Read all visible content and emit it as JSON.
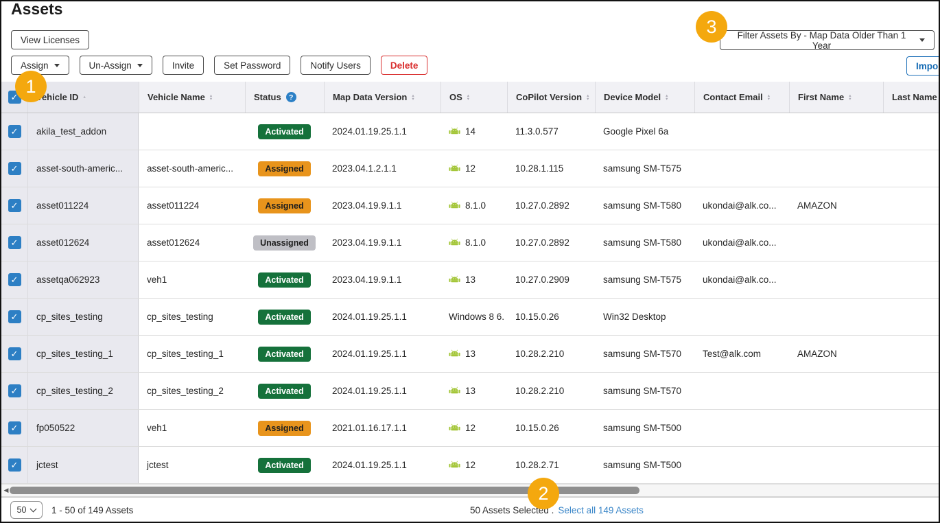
{
  "page": {
    "title": "Assets"
  },
  "toolbar": {
    "view_licenses": "View Licenses",
    "assign": "Assign",
    "un_assign": "Un-Assign",
    "invite": "Invite",
    "set_password": "Set Password",
    "notify_users": "Notify Users",
    "delete": "Delete",
    "filter": "Filter Assets By - Map Data Older Than 1 Year",
    "import": "Import"
  },
  "callouts": {
    "one": "1",
    "two": "2",
    "three": "3"
  },
  "colors": {
    "checkbox_blue": "#2D7FC4",
    "callout_yellow": "#F4A80E",
    "android_green": "#A4C639",
    "delete_red": "#D92F2F",
    "link_blue": "#3A86C8",
    "import_blue": "#176CB5",
    "status": {
      "Activated": "#15713B",
      "Assigned": "#E8941C",
      "Unassigned": "#BFBFC5"
    },
    "status_text": {
      "Activated": "#FFFFFF",
      "Assigned": "#1E1E1E",
      "Unassigned": "#1E1E1E"
    }
  },
  "table": {
    "columns": [
      {
        "key": "vehicle_id",
        "label": "Vehicle ID",
        "sort": "asc"
      },
      {
        "key": "vehicle_name",
        "label": "Vehicle Name",
        "sort": "both"
      },
      {
        "key": "status",
        "label": "Status",
        "help": true
      },
      {
        "key": "map_data_version",
        "label": "Map Data Version",
        "sort": "both"
      },
      {
        "key": "os",
        "label": "OS",
        "sort": "both"
      },
      {
        "key": "copilot_version",
        "label": "CoPilot Version",
        "sort": "both"
      },
      {
        "key": "device_model",
        "label": "Device Model",
        "sort": "both"
      },
      {
        "key": "contact_email",
        "label": "Contact Email",
        "sort": "both"
      },
      {
        "key": "first_name",
        "label": "First Name",
        "sort": "both"
      },
      {
        "key": "last_name",
        "label": "Last Name",
        "sort": "both"
      }
    ],
    "rows": [
      {
        "checked": true,
        "vehicle_id": "akila_test_addon",
        "vehicle_name": "",
        "status": "Activated",
        "map_data_version": "2024.01.19.25.1.1",
        "os_icon": "android",
        "os": "14",
        "copilot_version": "11.3.0.577",
        "device_model": "Google Pixel 6a",
        "contact_email": "",
        "first_name": "",
        "last_name": ""
      },
      {
        "checked": true,
        "vehicle_id": "asset-south-americ...",
        "vehicle_name": "asset-south-americ...",
        "status": "Assigned",
        "map_data_version": "2023.04.1.2.1.1",
        "os_icon": "android",
        "os": "12",
        "copilot_version": "10.28.1.115",
        "device_model": "samsung SM-T575",
        "contact_email": "",
        "first_name": "",
        "last_name": ""
      },
      {
        "checked": true,
        "vehicle_id": "asset011224",
        "vehicle_name": "asset011224",
        "status": "Assigned",
        "map_data_version": "2023.04.19.9.1.1",
        "os_icon": "android",
        "os": "8.1.0",
        "copilot_version": "10.27.0.2892",
        "device_model": "samsung SM-T580",
        "contact_email": "ukondai@alk.co...",
        "first_name": "AMAZON",
        "last_name": ""
      },
      {
        "checked": true,
        "vehicle_id": "asset012624",
        "vehicle_name": "asset012624",
        "status": "Unassigned",
        "map_data_version": "2023.04.19.9.1.1",
        "os_icon": "android",
        "os": "8.1.0",
        "copilot_version": "10.27.0.2892",
        "device_model": "samsung SM-T580",
        "contact_email": "ukondai@alk.co...",
        "first_name": "",
        "last_name": ""
      },
      {
        "checked": true,
        "vehicle_id": "assetqa062923",
        "vehicle_name": "veh1",
        "status": "Activated",
        "map_data_version": "2023.04.19.9.1.1",
        "os_icon": "android",
        "os": "13",
        "copilot_version": "10.27.0.2909",
        "device_model": "samsung SM-T575",
        "contact_email": "ukondai@alk.co...",
        "first_name": "",
        "last_name": ""
      },
      {
        "checked": true,
        "vehicle_id": "cp_sites_testing",
        "vehicle_name": "cp_sites_testing",
        "status": "Activated",
        "map_data_version": "2024.01.19.25.1.1",
        "os_icon": "none",
        "os": "Windows 8 6.",
        "copilot_version": "10.15.0.26",
        "device_model": "Win32 Desktop",
        "contact_email": "",
        "first_name": "",
        "last_name": ""
      },
      {
        "checked": true,
        "vehicle_id": "cp_sites_testing_1",
        "vehicle_name": "cp_sites_testing_1",
        "status": "Activated",
        "map_data_version": "2024.01.19.25.1.1",
        "os_icon": "android",
        "os": "13",
        "copilot_version": "10.28.2.210",
        "device_model": "samsung SM-T570",
        "contact_email": "Test@alk.com",
        "first_name": "AMAZON",
        "last_name": ""
      },
      {
        "checked": true,
        "vehicle_id": "cp_sites_testing_2",
        "vehicle_name": "cp_sites_testing_2",
        "status": "Activated",
        "map_data_version": "2024.01.19.25.1.1",
        "os_icon": "android",
        "os": "13",
        "copilot_version": "10.28.2.210",
        "device_model": "samsung SM-T570",
        "contact_email": "",
        "first_name": "",
        "last_name": ""
      },
      {
        "checked": true,
        "vehicle_id": "fp050522",
        "vehicle_name": "veh1",
        "status": "Assigned",
        "map_data_version": "2021.01.16.17.1.1",
        "os_icon": "android",
        "os": "12",
        "copilot_version": "10.15.0.26",
        "device_model": "samsung SM-T500",
        "contact_email": "",
        "first_name": "",
        "last_name": ""
      },
      {
        "checked": true,
        "vehicle_id": "jctest",
        "vehicle_name": "jctest",
        "status": "Activated",
        "map_data_version": "2024.01.19.25.1.1",
        "os_icon": "android",
        "os": "12",
        "copilot_version": "10.28.2.71",
        "device_model": "samsung SM-T500",
        "contact_email": "",
        "first_name": "",
        "last_name": ""
      }
    ]
  },
  "footer": {
    "page_size": "50",
    "range": "1 - 50 of 149 Assets",
    "selected": "50 Assets Selected .",
    "select_all": "Select all 149 Assets"
  }
}
